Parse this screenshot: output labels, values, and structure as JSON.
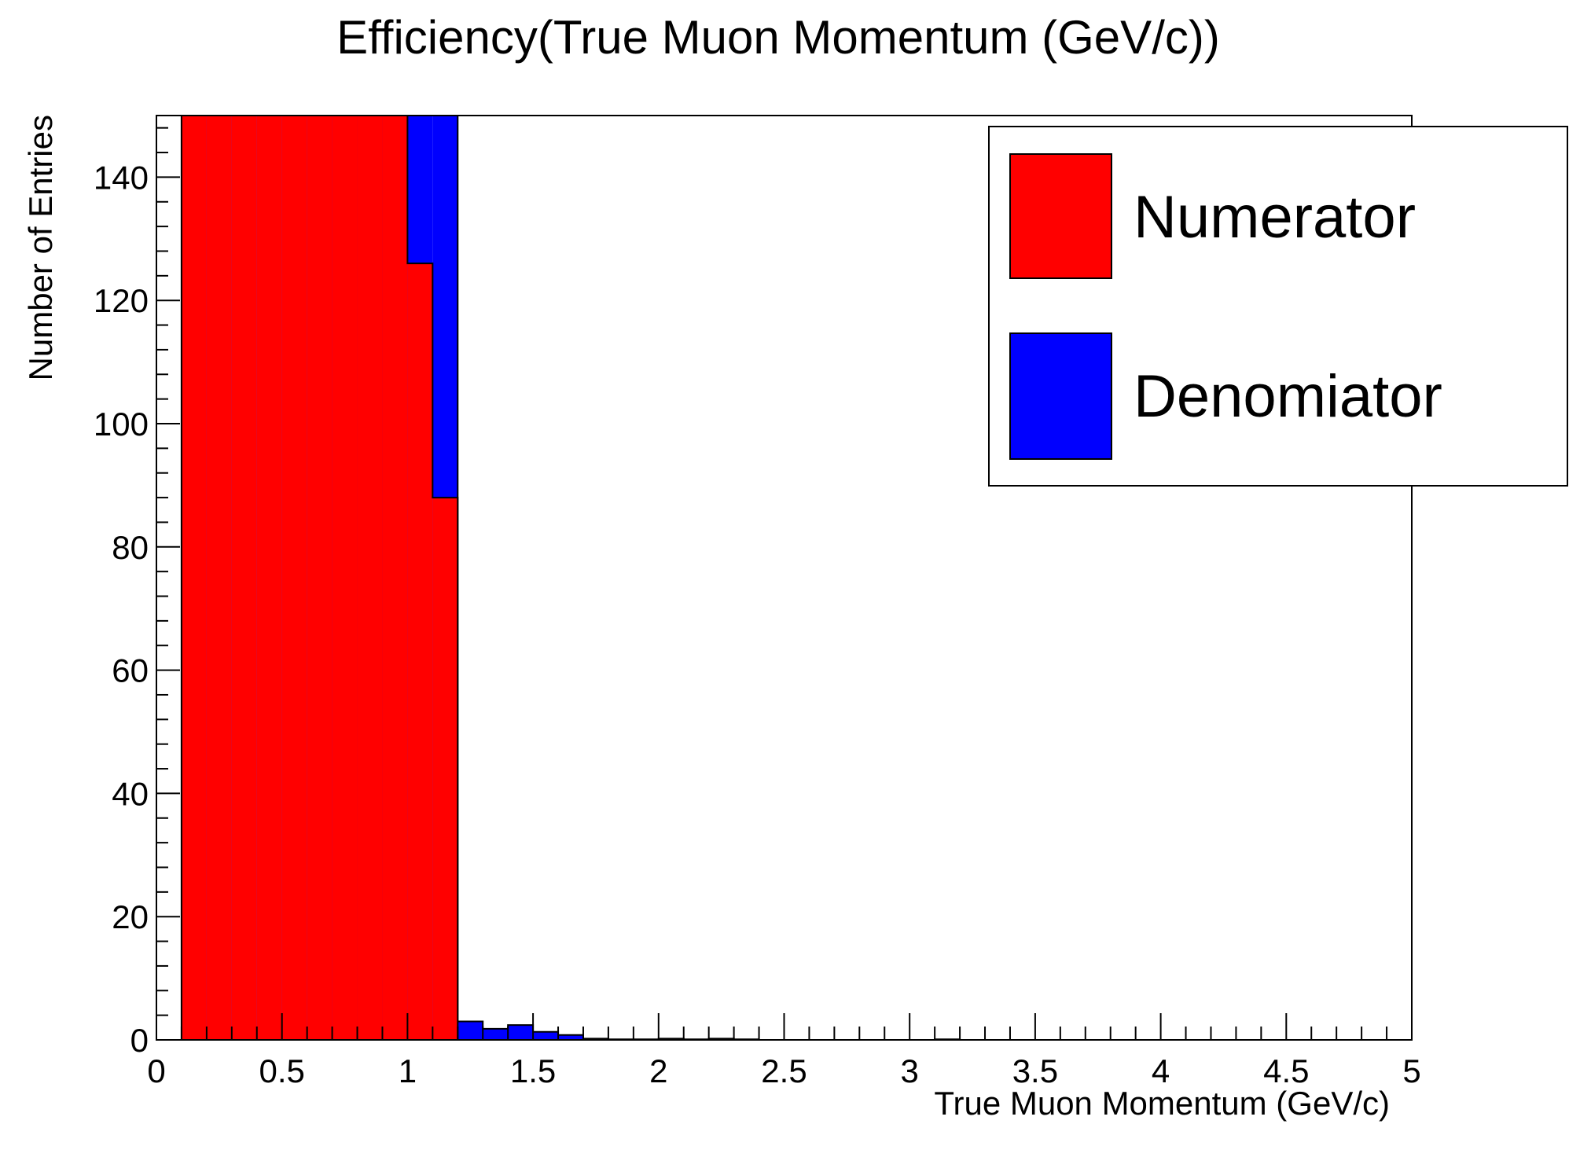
{
  "chart_data": {
    "type": "bar",
    "title": "Efficiency(True Muon Momentum (GeV/c))",
    "xlabel": "True Muon Momentum (GeV/c)",
    "ylabel": "Number of Entries",
    "xlim": [
      0,
      5
    ],
    "ylim": [
      0,
      150
    ],
    "bin_width": 0.1,
    "x_ticks": [
      "0",
      "0.5",
      "1",
      "1.5",
      "2",
      "2.5",
      "3",
      "3.5",
      "4",
      "4.5",
      "5"
    ],
    "y_ticks": [
      "0",
      "20",
      "40",
      "60",
      "80",
      "100",
      "120",
      "140"
    ],
    "grid": false,
    "legend": {
      "position": "top-right",
      "entries": [
        "Numerator",
        "Denomiator"
      ]
    },
    "series": [
      {
        "name": "Denomiator",
        "color": "#0000ff",
        "x": [
          0.1,
          0.2,
          0.3,
          0.4,
          0.5,
          0.6,
          0.7,
          0.8,
          0.9,
          1.0,
          1.1,
          1.2,
          1.3,
          1.4,
          1.5,
          1.6,
          1.7,
          1.8,
          1.9,
          2.0,
          2.1,
          2.2,
          2.3,
          3.1
        ],
        "values": [
          150,
          150,
          150,
          150,
          150,
          150,
          150,
          150,
          150,
          150,
          150,
          3,
          1.8,
          2.4,
          1.3,
          0.8,
          0.2,
          0.1,
          0.1,
          0.2,
          0.1,
          0.2,
          0.1,
          0.1
        ]
      },
      {
        "name": "Numerator",
        "color": "#ff0000",
        "x": [
          0.1,
          0.2,
          0.3,
          0.4,
          0.5,
          0.6,
          0.7,
          0.8,
          0.9,
          1.0,
          1.1
        ],
        "values": [
          150,
          150,
          150,
          150,
          150,
          150,
          150,
          150,
          150,
          126,
          88
        ]
      }
    ]
  }
}
